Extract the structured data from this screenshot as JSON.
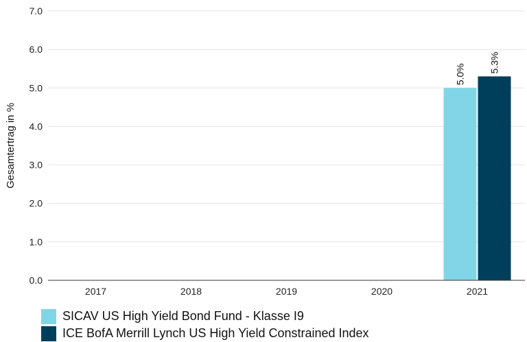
{
  "chart_data": {
    "type": "bar",
    "categories": [
      "2017",
      "2018",
      "2019",
      "2020",
      "2021"
    ],
    "series": [
      {
        "name": "SICAV US High Yield Bond Fund - Klasse I9",
        "values": [
          null,
          null,
          null,
          null,
          5.0
        ],
        "labels": [
          null,
          null,
          null,
          null,
          "5.0%"
        ],
        "color": "#80d6e6"
      },
      {
        "name": "ICE BofA Merrill Lynch US High Yield Constrained Index",
        "values": [
          null,
          null,
          null,
          null,
          5.3
        ],
        "labels": [
          null,
          null,
          null,
          null,
          "5.3%"
        ],
        "color": "#003f5c"
      }
    ],
    "ylabel": "Gesamtertrag in %",
    "yticks": [
      "0.0",
      "1.0",
      "2.0",
      "3.0",
      "4.0",
      "5.0",
      "6.0",
      "7.0"
    ],
    "ylim": [
      0,
      7
    ],
    "grid": true,
    "legend_position": "bottom-left"
  }
}
